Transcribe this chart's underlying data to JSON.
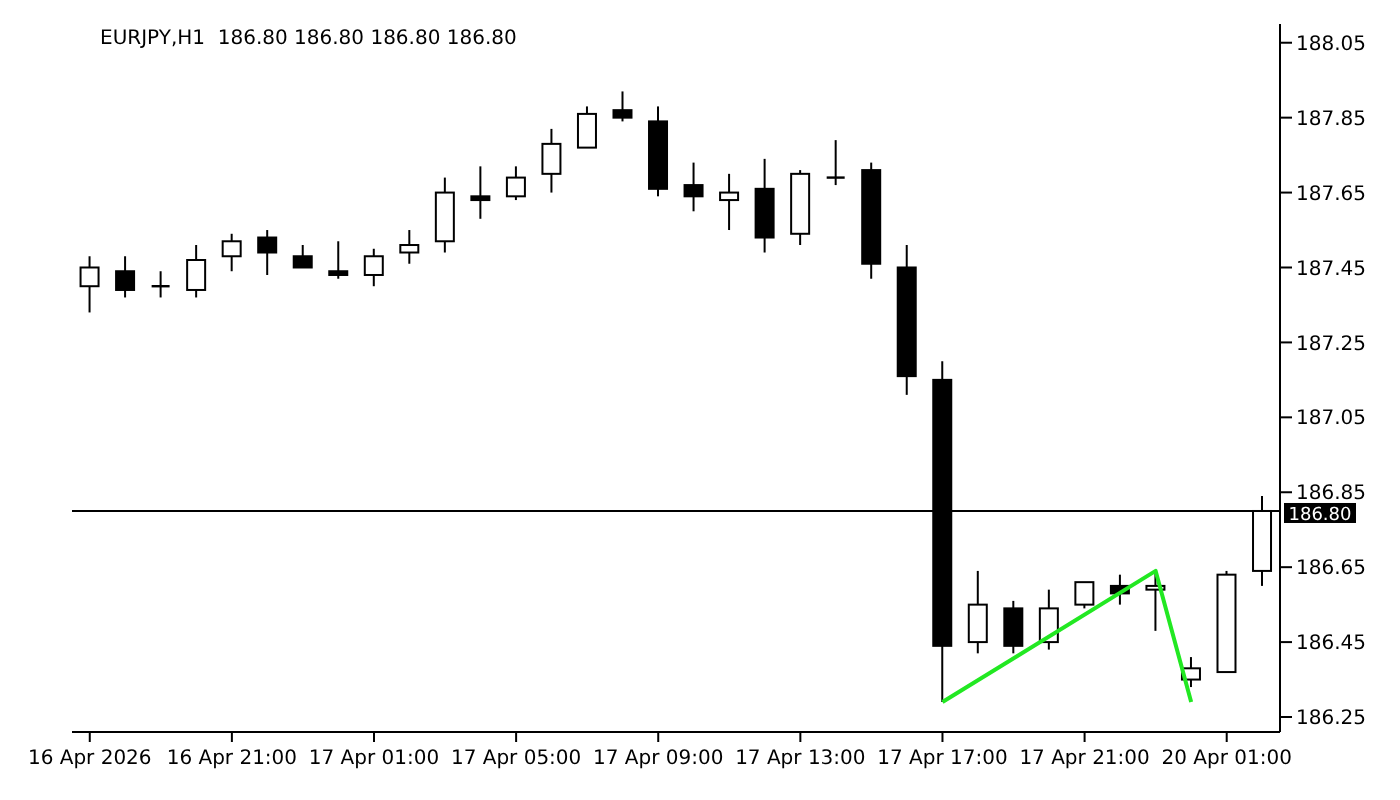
{
  "chart_data": {
    "type": "candlestick",
    "title": "EURJPY,H1  186.80 186.80 186.80 186.80",
    "categories": [
      "16 Apr 2026",
      null,
      null,
      null,
      "16 Apr 21:00",
      null,
      null,
      null,
      "17 Apr 01:00",
      null,
      null,
      null,
      "17 Apr 05:00",
      null,
      null,
      null,
      "17 Apr 09:00",
      null,
      null,
      null,
      "17 Apr 13:00",
      null,
      null,
      null,
      "17 Apr 17:00",
      null,
      null,
      null,
      "17 Apr 21:00",
      null,
      null,
      null,
      "20 Apr 01:00",
      null
    ],
    "ohlc": [
      [
        187.4,
        187.48,
        187.33,
        187.45
      ],
      [
        187.44,
        187.48,
        187.37,
        187.39
      ],
      [
        187.4,
        187.44,
        187.37,
        187.4
      ],
      [
        187.39,
        187.51,
        187.37,
        187.47
      ],
      [
        187.48,
        187.54,
        187.44,
        187.52
      ],
      [
        187.53,
        187.55,
        187.43,
        187.49
      ],
      [
        187.48,
        187.51,
        187.45,
        187.45
      ],
      [
        187.44,
        187.52,
        187.42,
        187.43
      ],
      [
        187.43,
        187.5,
        187.4,
        187.48
      ],
      [
        187.49,
        187.55,
        187.46,
        187.51
      ],
      [
        187.52,
        187.69,
        187.49,
        187.65
      ],
      [
        187.64,
        187.72,
        187.58,
        187.63
      ],
      [
        187.64,
        187.72,
        187.63,
        187.69
      ],
      [
        187.7,
        187.82,
        187.65,
        187.78
      ],
      [
        187.77,
        187.88,
        187.77,
        187.86
      ],
      [
        187.87,
        187.92,
        187.84,
        187.85
      ],
      [
        187.84,
        187.88,
        187.64,
        187.66
      ],
      [
        187.67,
        187.73,
        187.6,
        187.64
      ],
      [
        187.63,
        187.7,
        187.55,
        187.65
      ],
      [
        187.66,
        187.74,
        187.49,
        187.53
      ],
      [
        187.54,
        187.71,
        187.51,
        187.7
      ],
      [
        187.69,
        187.79,
        187.67,
        187.69
      ],
      [
        187.71,
        187.73,
        187.42,
        187.46
      ],
      [
        187.45,
        187.51,
        187.11,
        187.16
      ],
      [
        187.15,
        187.2,
        186.29,
        186.44
      ],
      [
        186.45,
        186.64,
        186.42,
        186.55
      ],
      [
        186.54,
        186.56,
        186.42,
        186.44
      ],
      [
        186.45,
        186.59,
        186.43,
        186.54
      ],
      [
        186.55,
        186.61,
        186.54,
        186.61
      ],
      [
        186.6,
        186.63,
        186.55,
        186.58
      ],
      [
        186.59,
        186.64,
        186.48,
        186.6
      ],
      [
        186.35,
        186.41,
        186.33,
        186.38
      ],
      [
        186.37,
        186.64,
        186.37,
        186.63
      ],
      [
        186.64,
        186.84,
        186.6,
        186.8
      ]
    ],
    "series": [
      {
        "type": "line",
        "color": "#22e822",
        "values": [
          null,
          null,
          null,
          null,
          null,
          null,
          null,
          null,
          null,
          null,
          null,
          null,
          null,
          null,
          null,
          null,
          null,
          null,
          null,
          null,
          null,
          null,
          null,
          null,
          186.29,
          null,
          null,
          null,
          null,
          null,
          186.64,
          186.29,
          null,
          null
        ]
      }
    ],
    "ylim": [
      186.21,
      188.1
    ],
    "yticks": [
      186.25,
      186.45,
      186.65,
      186.85,
      187.05,
      187.25,
      187.45,
      187.65,
      187.85,
      188.05
    ],
    "ref_lines": [
      {
        "axis": "y",
        "value": 186.8,
        "label": "186.80",
        "color": "#000000"
      }
    ],
    "legend": false,
    "grid": false
  }
}
